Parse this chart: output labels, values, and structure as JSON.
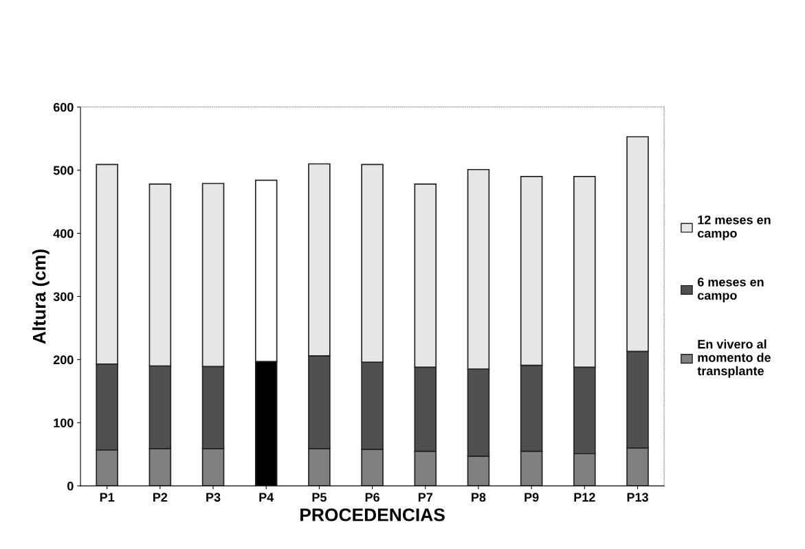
{
  "chart_data": {
    "type": "bar",
    "stacked": true,
    "xlabel": "PROCEDENCIAS",
    "ylabel": "Altura (cm)",
    "categories": [
      "P1",
      "P2",
      "P3",
      "P4",
      "P5",
      "P6",
      "P7",
      "P8",
      "P9",
      "P12",
      "P13"
    ],
    "series": [
      {
        "name": "En vivero al momento de transplante",
        "color": "#808080",
        "colors": [
          "#808080",
          "#808080",
          "#808080",
          "#000000",
          "#808080",
          "#808080",
          "#808080",
          "#808080",
          "#808080",
          "#808080",
          "#808080"
        ],
        "values": [
          57,
          59,
          59,
          null,
          59,
          58,
          55,
          47,
          55,
          51,
          60
        ]
      },
      {
        "name": "6 meses en campo",
        "color": "#505050",
        "colors": [
          "#505050",
          "#505050",
          "#505050",
          "#000000",
          "#505050",
          "#505050",
          "#505050",
          "#505050",
          "#505050",
          "#505050",
          "#505050"
        ],
        "values": [
          136,
          131,
          130,
          197,
          147,
          138,
          133,
          138,
          136,
          137,
          153
        ]
      },
      {
        "name": "12 meses en campo",
        "color": "#e6e6e6",
        "colors": [
          "#e6e6e6",
          "#e6e6e6",
          "#e6e6e6",
          "#ffffff",
          "#e6e6e6",
          "#e6e6e6",
          "#e6e6e6",
          "#e6e6e6",
          "#e6e6e6",
          "#e6e6e6",
          "#e6e6e6"
        ],
        "values": [
          316,
          288,
          290,
          287,
          304,
          313,
          290,
          316,
          299,
          302,
          340
        ]
      }
    ],
    "ylim": [
      0,
      600
    ],
    "yticks": [
      0,
      100,
      200,
      300,
      400,
      500,
      600
    ],
    "grid": false,
    "legend": "right"
  }
}
